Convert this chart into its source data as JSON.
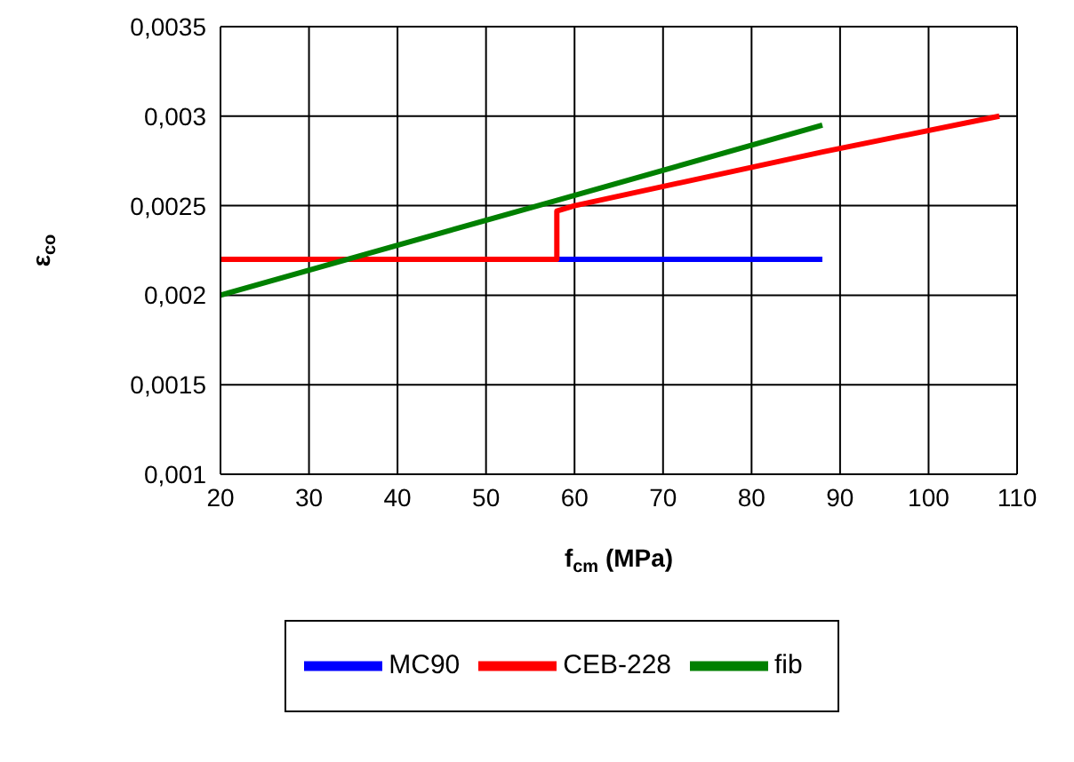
{
  "chart_data": {
    "type": "line",
    "xlabel": "f$_{cm}$ (MPa)",
    "ylabel": "ε$_{co}$",
    "xlim": [
      20,
      110
    ],
    "xticks": [
      20,
      30,
      40,
      50,
      60,
      70,
      80,
      90,
      100,
      110
    ],
    "ylim": [
      0.001,
      0.0035
    ],
    "yticks": [
      {
        "value": 0.001,
        "label": "0,001"
      },
      {
        "value": 0.0015,
        "label": "0,0015"
      },
      {
        "value": 0.002,
        "label": "0,002"
      },
      {
        "value": 0.0025,
        "label": "0,0025"
      },
      {
        "value": 0.003,
        "label": "0,003"
      },
      {
        "value": 0.0035,
        "label": "0,0035"
      }
    ],
    "grid": true,
    "legend": "bottom",
    "marker": "none",
    "line_style": "solid",
    "series": [
      {
        "name": "MC90",
        "color": "#0000ff",
        "x": [
          58,
          88
        ],
        "values": [
          0.0022,
          0.0022
        ]
      },
      {
        "name": "CEB-228",
        "color": "#ff0000",
        "x": [
          20,
          58,
          58,
          60,
          88,
          108
        ],
        "values": [
          0.0022,
          0.0022,
          0.00247,
          0.0025,
          0.0028,
          0.003
        ]
      },
      {
        "name": "fib",
        "color": "#008000",
        "x": [
          20,
          58,
          88
        ],
        "values": [
          0.002,
          0.00253,
          0.00295
        ]
      }
    ]
  }
}
